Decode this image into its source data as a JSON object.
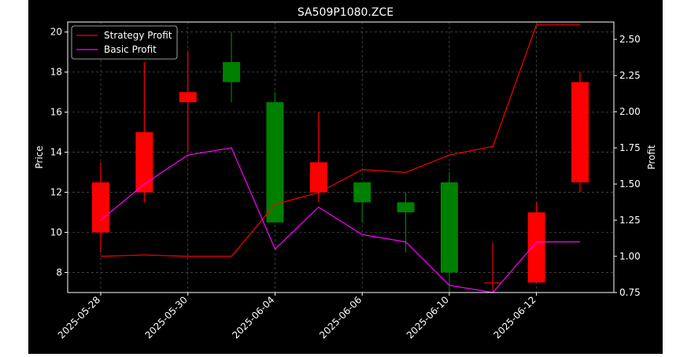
{
  "chart_data": {
    "type": "candlestick",
    "title": "SA509P1080.ZCE",
    "ylabel_left": "Price",
    "ylabel_right": "Profit",
    "ylim_left": [
      7.0,
      20.5
    ],
    "ylim_right": [
      0.75,
      2.62
    ],
    "yticks_left": [
      "8",
      "10",
      "12",
      "14",
      "16",
      "18",
      "20"
    ],
    "yticks_right": [
      "0.75",
      "1.00",
      "1.25",
      "1.50",
      "1.75",
      "2.00",
      "2.25",
      "2.50"
    ],
    "xticks": [
      "2025-05-28",
      "2025-05-30",
      "2025-06-04",
      "2025-06-06",
      "2025-06-10",
      "2025-06-12"
    ],
    "grid": true,
    "legend_position": "top-left",
    "candles": [
      {
        "open": 10.0,
        "high": 13.5,
        "low": 9.0,
        "close": 12.5
      },
      {
        "open": 12.0,
        "high": 18.5,
        "low": 11.5,
        "close": 15.0
      },
      {
        "open": 16.5,
        "high": 19.0,
        "low": 14.0,
        "close": 17.0
      },
      {
        "open": 18.5,
        "high": 20.0,
        "low": 16.5,
        "close": 17.5
      },
      {
        "open": 16.5,
        "high": 17.0,
        "low": 10.5,
        "close": 10.5
      },
      {
        "open": 12.0,
        "high": 16.0,
        "low": 11.5,
        "close": 13.5
      },
      {
        "open": 12.5,
        "high": 12.5,
        "low": 10.5,
        "close": 11.5
      },
      {
        "open": 11.5,
        "high": 12.0,
        "low": 9.0,
        "close": 11.0
      },
      {
        "open": 12.5,
        "high": 13.0,
        "low": 7.0,
        "close": 8.0
      },
      {
        "open": 7.5,
        "high": 9.5,
        "low": 7.0,
        "close": 7.5
      },
      {
        "open": 7.5,
        "high": 11.5,
        "low": 7.5,
        "close": 11.0
      },
      {
        "open": 12.5,
        "high": 18.0,
        "low": 12.0,
        "close": 17.5
      }
    ],
    "series": [
      {
        "name": "Strategy Profit",
        "color": "#ff0000",
        "values": [
          1.0,
          1.01,
          1.0,
          1.0,
          1.36,
          1.44,
          1.6,
          1.58,
          1.7,
          1.76,
          2.6,
          2.6
        ]
      },
      {
        "name": "Basic Profit",
        "color": "#ff00ff",
        "values": [
          1.25,
          1.5,
          1.7,
          1.75,
          1.05,
          1.34,
          1.15,
          1.1,
          0.8,
          0.75,
          1.1,
          1.1
        ]
      }
    ],
    "colors": {
      "up_candle": "#ff0000",
      "down_candle": "#008000",
      "background": "#000000",
      "text": "#ffffff"
    }
  }
}
